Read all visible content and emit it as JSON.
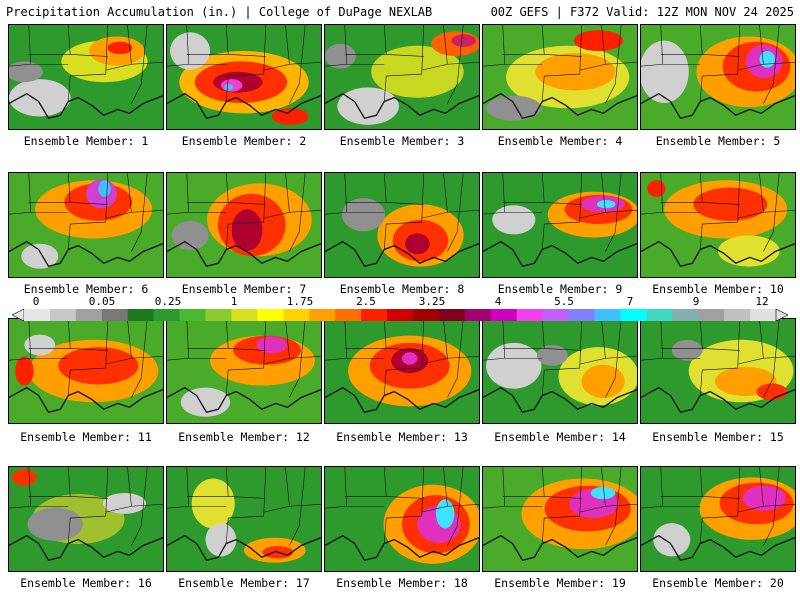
{
  "header": {
    "left": "Precipitation Accumulation (in.) | College of DuPage NEXLAB",
    "right": "00Z GEFS | F372 Valid: 12Z MON NOV 24 2025"
  },
  "label_prefix": "Ensemble Member: ",
  "members": [
    {
      "id": 1,
      "label": "Ensemble Member: 1",
      "bg": "#2e9a2e",
      "blobs": [
        [
          0.62,
          0.35,
          0.28,
          0.2,
          "#d8e020"
        ],
        [
          0.7,
          0.25,
          0.18,
          0.14,
          "#ffa000"
        ],
        [
          0.72,
          0.22,
          0.08,
          0.06,
          "#ff2000"
        ],
        [
          0.2,
          0.7,
          0.2,
          0.18,
          "#d0d0d0"
        ],
        [
          0.1,
          0.45,
          0.12,
          0.1,
          "#909090"
        ]
      ]
    },
    {
      "id": 2,
      "label": "Ensemble Member: 2",
      "bg": "#2e9a2e",
      "blobs": [
        [
          0.5,
          0.55,
          0.42,
          0.3,
          "#ffb400"
        ],
        [
          0.48,
          0.55,
          0.3,
          0.2,
          "#ff3000"
        ],
        [
          0.46,
          0.55,
          0.16,
          0.1,
          "#b00030"
        ],
        [
          0.42,
          0.58,
          0.07,
          0.06,
          "#f040d0"
        ],
        [
          0.4,
          0.6,
          0.03,
          0.03,
          "#40c0ff"
        ],
        [
          0.15,
          0.25,
          0.13,
          0.18,
          "#d0d0d0"
        ],
        [
          0.8,
          0.88,
          0.12,
          0.08,
          "#ff2000"
        ]
      ]
    },
    {
      "id": 3,
      "label": "Ensemble Member: 3",
      "bg": "#2e9a2e",
      "blobs": [
        [
          0.6,
          0.45,
          0.3,
          0.25,
          "#c8d820"
        ],
        [
          0.85,
          0.18,
          0.16,
          0.12,
          "#ff6000"
        ],
        [
          0.9,
          0.15,
          0.08,
          0.06,
          "#d02060"
        ],
        [
          0.28,
          0.78,
          0.2,
          0.18,
          "#d0d0d0"
        ],
        [
          0.1,
          0.3,
          0.1,
          0.12,
          "#909090"
        ]
      ]
    },
    {
      "id": 4,
      "label": "Ensemble Member: 4",
      "bg": "#4aaa2a",
      "blobs": [
        [
          0.55,
          0.5,
          0.4,
          0.3,
          "#e0e030"
        ],
        [
          0.6,
          0.45,
          0.26,
          0.18,
          "#ffa000"
        ],
        [
          0.75,
          0.15,
          0.16,
          0.1,
          "#ff2000"
        ],
        [
          0.2,
          0.8,
          0.18,
          0.12,
          "#909090"
        ]
      ]
    },
    {
      "id": 5,
      "label": "Ensemble Member: 5",
      "bg": "#4aaa2a",
      "blobs": [
        [
          0.7,
          0.45,
          0.34,
          0.34,
          "#ffa000"
        ],
        [
          0.75,
          0.4,
          0.22,
          0.24,
          "#ff3000"
        ],
        [
          0.8,
          0.35,
          0.12,
          0.16,
          "#e030c0"
        ],
        [
          0.82,
          0.33,
          0.05,
          0.08,
          "#40e0ff"
        ],
        [
          0.15,
          0.45,
          0.16,
          0.3,
          "#d0d0d0"
        ]
      ]
    },
    {
      "id": 6,
      "label": "Ensemble Member: 6",
      "bg": "#4aaa2a",
      "blobs": [
        [
          0.55,
          0.35,
          0.38,
          0.28,
          "#ffa000"
        ],
        [
          0.58,
          0.28,
          0.22,
          0.18,
          "#ff3000"
        ],
        [
          0.6,
          0.2,
          0.1,
          0.14,
          "#d040d0"
        ],
        [
          0.62,
          0.15,
          0.04,
          0.08,
          "#40c0ff"
        ],
        [
          0.2,
          0.8,
          0.12,
          0.12,
          "#d0d0d0"
        ]
      ]
    },
    {
      "id": 7,
      "label": "Ensemble Member: 7",
      "bg": "#4aaa2a",
      "blobs": [
        [
          0.6,
          0.45,
          0.34,
          0.35,
          "#ffa000"
        ],
        [
          0.55,
          0.5,
          0.22,
          0.3,
          "#ff3000"
        ],
        [
          0.52,
          0.55,
          0.1,
          0.2,
          "#b00030"
        ],
        [
          0.15,
          0.6,
          0.12,
          0.14,
          "#909090"
        ]
      ]
    },
    {
      "id": 8,
      "label": "Ensemble Member: 8",
      "bg": "#2e9a2e",
      "blobs": [
        [
          0.62,
          0.6,
          0.28,
          0.3,
          "#ffa000"
        ],
        [
          0.62,
          0.65,
          0.18,
          0.2,
          "#ff3000"
        ],
        [
          0.6,
          0.68,
          0.08,
          0.1,
          "#b00030"
        ],
        [
          0.25,
          0.4,
          0.14,
          0.16,
          "#909090"
        ]
      ]
    },
    {
      "id": 9,
      "label": "Ensemble Member: 9",
      "bg": "#2e9a2e",
      "blobs": [
        [
          0.72,
          0.4,
          0.3,
          0.22,
          "#ffa000"
        ],
        [
          0.75,
          0.35,
          0.22,
          0.14,
          "#ff3000"
        ],
        [
          0.78,
          0.3,
          0.14,
          0.08,
          "#e030c0"
        ],
        [
          0.8,
          0.3,
          0.06,
          0.04,
          "#40e0ff"
        ],
        [
          0.2,
          0.45,
          0.14,
          0.14,
          "#d0d0d0"
        ]
      ]
    },
    {
      "id": 10,
      "label": "Ensemble Member: 10",
      "bg": "#4aaa2a",
      "blobs": [
        [
          0.55,
          0.35,
          0.4,
          0.28,
          "#ffa000"
        ],
        [
          0.58,
          0.3,
          0.24,
          0.16,
          "#ff3000"
        ],
        [
          0.1,
          0.15,
          0.06,
          0.08,
          "#ff2000"
        ],
        [
          0.7,
          0.75,
          0.2,
          0.15,
          "#e0e030"
        ]
      ]
    },
    {
      "id": 11,
      "label": "Ensemble Member: 11",
      "bg": "#4aaa2a",
      "blobs": [
        [
          0.55,
          0.5,
          0.42,
          0.3,
          "#ffa000"
        ],
        [
          0.58,
          0.45,
          0.26,
          0.18,
          "#ff3000"
        ],
        [
          0.1,
          0.5,
          0.06,
          0.14,
          "#ff2000"
        ],
        [
          0.2,
          0.25,
          0.1,
          0.1,
          "#d0d0d0"
        ]
      ]
    },
    {
      "id": 12,
      "label": "Ensemble Member: 12",
      "bg": "#4aaa2a",
      "blobs": [
        [
          0.62,
          0.4,
          0.34,
          0.24,
          "#ffa000"
        ],
        [
          0.65,
          0.3,
          0.22,
          0.14,
          "#ff3000"
        ],
        [
          0.68,
          0.25,
          0.1,
          0.08,
          "#e030c0"
        ],
        [
          0.25,
          0.8,
          0.16,
          0.14,
          "#d0d0d0"
        ]
      ]
    },
    {
      "id": 13,
      "label": "Ensemble Member: 13",
      "bg": "#2e9a2e",
      "blobs": [
        [
          0.55,
          0.5,
          0.4,
          0.34,
          "#ffa000"
        ],
        [
          0.55,
          0.45,
          0.26,
          0.22,
          "#ff3000"
        ],
        [
          0.55,
          0.4,
          0.12,
          0.12,
          "#b00030"
        ],
        [
          0.55,
          0.38,
          0.05,
          0.06,
          "#e030c0"
        ]
      ]
    },
    {
      "id": 14,
      "label": "Ensemble Member: 14",
      "bg": "#2e9a2e",
      "blobs": [
        [
          0.75,
          0.55,
          0.26,
          0.28,
          "#e0e030"
        ],
        [
          0.78,
          0.6,
          0.14,
          0.16,
          "#ffa000"
        ],
        [
          0.2,
          0.45,
          0.18,
          0.22,
          "#d0d0d0"
        ],
        [
          0.45,
          0.35,
          0.1,
          0.1,
          "#909090"
        ]
      ]
    },
    {
      "id": 15,
      "label": "Ensemble Member: 15",
      "bg": "#2e9a2e",
      "blobs": [
        [
          0.65,
          0.5,
          0.34,
          0.3,
          "#e0e030"
        ],
        [
          0.68,
          0.6,
          0.2,
          0.14,
          "#ffa000"
        ],
        [
          0.85,
          0.7,
          0.1,
          0.08,
          "#ff3000"
        ],
        [
          0.3,
          0.3,
          0.1,
          0.1,
          "#909090"
        ]
      ]
    },
    {
      "id": 16,
      "label": "Ensemble Member: 16",
      "bg": "#2e9a2e",
      "blobs": [
        [
          0.45,
          0.5,
          0.3,
          0.24,
          "#a0c030"
        ],
        [
          0.1,
          0.1,
          0.08,
          0.08,
          "#ff3000"
        ],
        [
          0.3,
          0.55,
          0.18,
          0.16,
          "#909090"
        ],
        [
          0.75,
          0.35,
          0.14,
          0.1,
          "#d0d0d0"
        ]
      ]
    },
    {
      "id": 17,
      "label": "Ensemble Member: 17",
      "bg": "#2e9a2e",
      "blobs": [
        [
          0.3,
          0.35,
          0.14,
          0.24,
          "#e0e030"
        ],
        [
          0.7,
          0.8,
          0.2,
          0.12,
          "#ffa000"
        ],
        [
          0.72,
          0.82,
          0.1,
          0.06,
          "#ff3000"
        ],
        [
          0.35,
          0.7,
          0.1,
          0.16,
          "#d0d0d0"
        ]
      ]
    },
    {
      "id": 18,
      "label": "Ensemble Member: 18",
      "bg": "#2e9a2e",
      "blobs": [
        [
          0.7,
          0.55,
          0.32,
          0.38,
          "#ffa000"
        ],
        [
          0.72,
          0.55,
          0.22,
          0.28,
          "#ff3000"
        ],
        [
          0.74,
          0.55,
          0.14,
          0.18,
          "#e030c0"
        ],
        [
          0.78,
          0.45,
          0.06,
          0.14,
          "#40e0ff"
        ]
      ]
    },
    {
      "id": 19,
      "label": "Ensemble Member: 19",
      "bg": "#4aaa2a",
      "blobs": [
        [
          0.65,
          0.45,
          0.4,
          0.34,
          "#ffa000"
        ],
        [
          0.68,
          0.4,
          0.28,
          0.22,
          "#ff3000"
        ],
        [
          0.72,
          0.35,
          0.16,
          0.14,
          "#e030c0"
        ],
        [
          0.78,
          0.25,
          0.08,
          0.06,
          "#40e0ff"
        ]
      ]
    },
    {
      "id": 20,
      "label": "Ensemble Member: 20",
      "bg": "#2e9a2e",
      "blobs": [
        [
          0.72,
          0.4,
          0.34,
          0.3,
          "#ffa000"
        ],
        [
          0.75,
          0.35,
          0.24,
          0.2,
          "#ff3000"
        ],
        [
          0.8,
          0.3,
          0.14,
          0.12,
          "#e030c0"
        ],
        [
          0.2,
          0.7,
          0.12,
          0.16,
          "#d0d0d0"
        ]
      ]
    }
  ],
  "colorbar": {
    "labels": [
      "0",
      "0.05",
      "0.25",
      "1",
      "1.75",
      "2.5",
      "3.25",
      "4",
      "5.5",
      "7",
      "9",
      "12"
    ],
    "colors": [
      "#e6e6e6",
      "#c8c8c8",
      "#a0a0a0",
      "#787878",
      "#1e7a1e",
      "#2e9a2e",
      "#4ab82e",
      "#8ccc2e",
      "#d8e020",
      "#ffff00",
      "#ffd200",
      "#ffa000",
      "#ff6e00",
      "#ff2000",
      "#d00000",
      "#a00000",
      "#800020",
      "#a00070",
      "#d000c0",
      "#f040f0",
      "#c060ff",
      "#8080ff",
      "#40c0ff",
      "#00ffff",
      "#40d8c0",
      "#80b0b0",
      "#a0a0a0",
      "#c0c0c0",
      "#e0e0e0"
    ]
  }
}
